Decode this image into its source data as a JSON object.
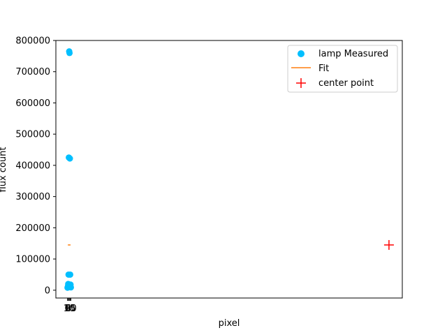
{
  "chart_data": {
    "type": "scatter",
    "xlabel": "pixel",
    "ylabel": "flux count",
    "xlim": [
      -3.5,
      100.5
    ],
    "ylim": [
      -25000,
      800000
    ],
    "yticks": [
      0,
      100000,
      200000,
      300000,
      400000,
      500000,
      600000,
      700000,
      800000
    ],
    "ytick_labels": [
      "0",
      "100000",
      "200000",
      "300000",
      "400000",
      "500000",
      "600000",
      "700000",
      "800000"
    ],
    "xtick_labels": [
      "0",
      "5",
      "10",
      "15",
      "20"
    ],
    "xticks": [
      0,
      0.25,
      0.5,
      0.75,
      1.0
    ],
    "legend_position": "top-right",
    "series": [
      {
        "name": "lamp Measured",
        "kind": "scatter",
        "color": "#00bfff",
        "x": [
          0,
          0.1,
          0.2,
          0.3,
          0.4,
          0.5,
          0.6,
          0.7,
          0.8,
          0.9,
          1.0
        ],
        "y": [
          8000,
          12000,
          20000,
          50000,
          425000,
          765000,
          760000,
          422000,
          50000,
          18000,
          9000
        ]
      },
      {
        "name": "Fit",
        "kind": "line",
        "color": "#ff7f0e",
        "x": [
          0.1,
          0.9
        ],
        "y": [
          145000,
          145000
        ]
      },
      {
        "name": "center point",
        "kind": "plus",
        "color": "#ff0000",
        "x": [
          96.5
        ],
        "y": [
          145000
        ]
      }
    ]
  }
}
